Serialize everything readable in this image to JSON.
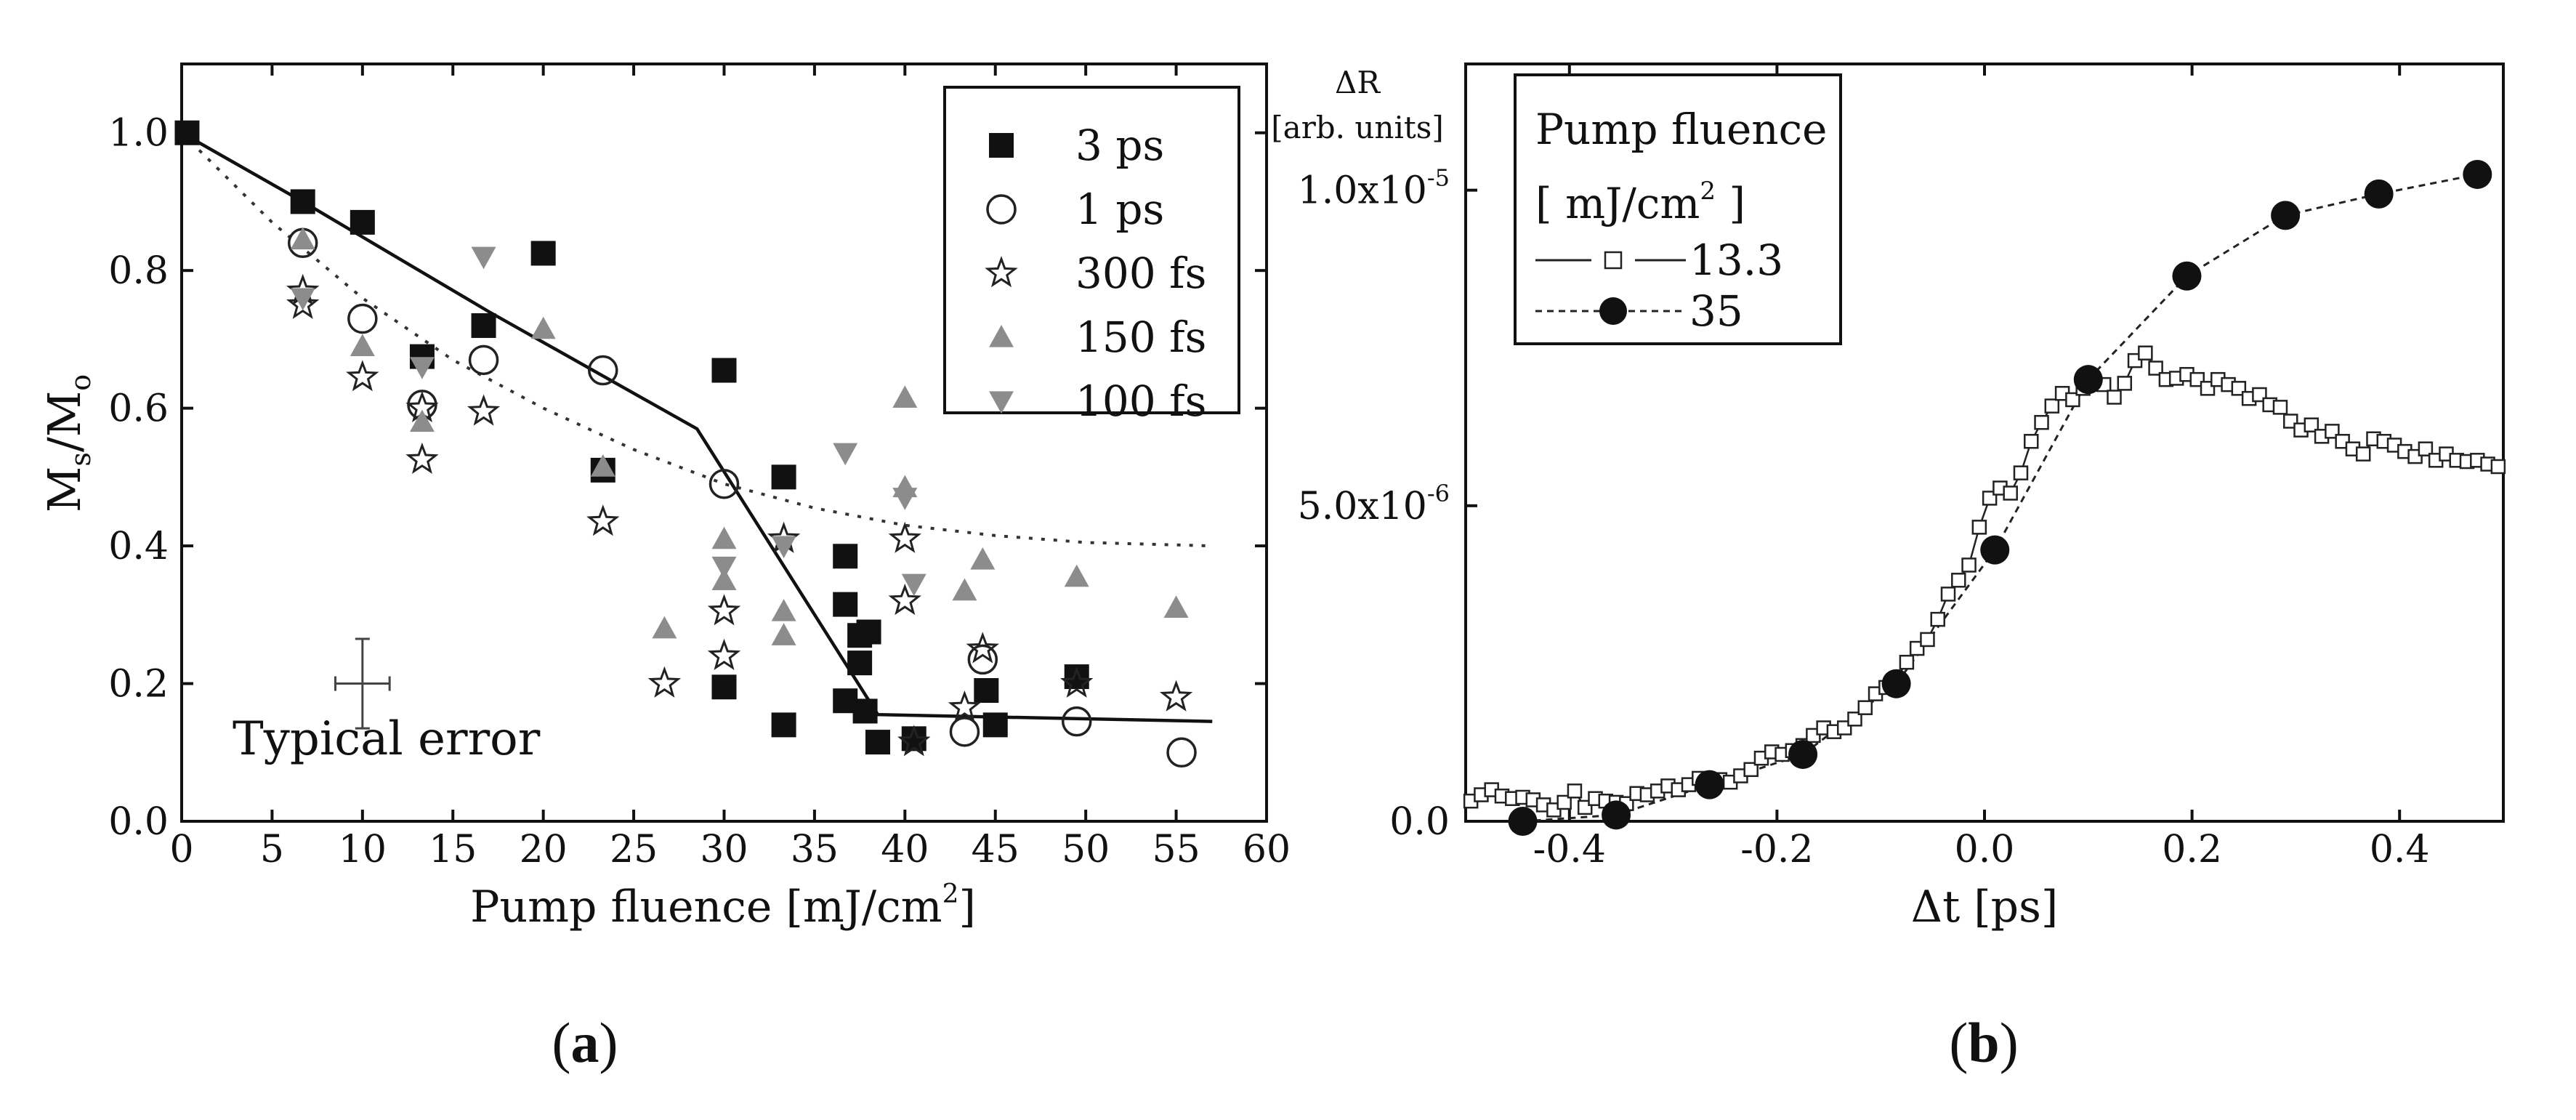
{
  "figure": {
    "label_a_open": "(",
    "label_a_letter": "a",
    "label_a_close": ")",
    "label_b_open": "(",
    "label_b_letter": "b",
    "label_b_close": ")"
  },
  "chart_data": [
    {
      "type": "scatter",
      "panel": "a",
      "xlabel": "Pump fluence [mJ/cm",
      "xlabel_sup": "2",
      "xlabel_end": "]",
      "ylabel_main": "M",
      "ylabel_sub_s": "s",
      "ylabel_slash": "/M",
      "ylabel_sub_o": "o",
      "xlim": [
        0,
        60
      ],
      "ylim": [
        0,
        1.1
      ],
      "xticks": [
        "0",
        "5",
        "10",
        "15",
        "20",
        "25",
        "30",
        "35",
        "40",
        "45",
        "50",
        "55",
        "60"
      ],
      "yticks": [
        "0.0",
        "0.2",
        "0.4",
        "0.6",
        "0.8",
        "1.0"
      ],
      "annotation": "Typical error",
      "error_bar": {
        "x": 10,
        "y": 0.2,
        "dx": 1.5,
        "dy": 0.065
      },
      "legend": [
        {
          "name": "3 ps",
          "marker": "square-filled"
        },
        {
          "name": "1 ps",
          "marker": "circle-open"
        },
        {
          "name": "300 fs",
          "marker": "star-open"
        },
        {
          "name": "150 fs",
          "marker": "triangle-up-gray"
        },
        {
          "name": "100 fs",
          "marker": "triangle-down-gray"
        }
      ],
      "series": [
        {
          "name": "3 ps",
          "marker": "square-filled",
          "x": [
            0.3,
            6.7,
            10,
            13.3,
            16.7,
            20,
            23.3,
            30,
            30,
            33.3,
            33.3,
            36.7,
            36.7,
            36.7,
            37.5,
            37.5,
            37.8,
            38,
            38.5,
            40.5,
            44.5,
            45,
            49.5
          ],
          "y": [
            1.0,
            0.9,
            0.87,
            0.675,
            0.72,
            0.825,
            0.51,
            0.655,
            0.195,
            0.5,
            0.14,
            0.385,
            0.315,
            0.175,
            0.27,
            0.23,
            0.16,
            0.275,
            0.115,
            0.12,
            0.19,
            0.14,
            0.21
          ]
        },
        {
          "name": "1 ps",
          "marker": "circle-open",
          "x": [
            6.7,
            10,
            13.3,
            16.7,
            23.3,
            30,
            43.3,
            44.3,
            49.5,
            55.3
          ],
          "y": [
            0.84,
            0.73,
            0.605,
            0.67,
            0.655,
            0.49,
            0.13,
            0.235,
            0.145,
            0.1
          ]
        },
        {
          "name": "300 fs",
          "marker": "star-open",
          "x": [
            6.7,
            6.7,
            10,
            13.3,
            13.3,
            16.7,
            23.3,
            26.7,
            30,
            30,
            33.3,
            40,
            40,
            40.5,
            43.3,
            44.3,
            49.5,
            55
          ],
          "y": [
            0.77,
            0.75,
            0.645,
            0.6,
            0.525,
            0.595,
            0.435,
            0.2,
            0.305,
            0.24,
            0.41,
            0.41,
            0.32,
            0.115,
            0.165,
            0.25,
            0.2,
            0.18
          ]
        },
        {
          "name": "150 fs",
          "marker": "triangle-up-gray",
          "x": [
            6.7,
            10,
            13.3,
            20,
            23.3,
            26.7,
            30,
            30,
            33.3,
            33.3,
            40,
            40,
            43.3,
            44.3,
            49.5,
            55
          ],
          "y": [
            0.845,
            0.69,
            0.58,
            0.715,
            0.515,
            0.28,
            0.41,
            0.35,
            0.305,
            0.27,
            0.615,
            0.485,
            0.335,
            0.38,
            0.355,
            0.31
          ]
        },
        {
          "name": "100 fs",
          "marker": "triangle-down-gray",
          "x": [
            6.7,
            13.3,
            16.7,
            30,
            33.3,
            36.7,
            40,
            40.5
          ],
          "y": [
            0.76,
            0.66,
            0.82,
            0.37,
            0.4,
            0.535,
            0.47,
            0.345
          ]
        }
      ],
      "solid_curve": {
        "x": [
          0,
          6.7,
          17,
          28.5,
          38.5,
          57
        ],
        "y": [
          1.0,
          0.9,
          0.74,
          0.57,
          0.155,
          0.145
        ]
      },
      "dotted_curve": {
        "x": [
          0,
          5,
          10,
          15,
          20,
          25,
          30,
          35,
          40,
          45,
          50,
          57
        ],
        "y": [
          1.0,
          0.87,
          0.76,
          0.67,
          0.6,
          0.54,
          0.49,
          0.455,
          0.43,
          0.415,
          0.405,
          0.4
        ]
      }
    },
    {
      "type": "line",
      "panel": "b",
      "xlabel": "Δt [ps]",
      "ylabel_top": "ΔR",
      "ylabel_units": "[arb. units]",
      "xlim": [
        -0.5,
        0.5
      ],
      "ylim": [
        0,
        1.2e-05
      ],
      "xticks": [
        "-0.4",
        "-0.2",
        "0.0",
        "0.2",
        "0.4"
      ],
      "yticks": [
        {
          "value": 0,
          "mantissa": "0.0",
          "exp": ""
        },
        {
          "value": 5e-06,
          "mantissa": "5.0x10",
          "exp": "-6"
        },
        {
          "value": 1e-05,
          "mantissa": "1.0x10",
          "exp": "-5"
        }
      ],
      "legend_title": "Pump fluence",
      "legend_units": "[ mJ/cm",
      "legend_units_sup": "2",
      "legend_units_end": " ]",
      "series": [
        {
          "name": "13.3",
          "marker": "square-open",
          "line": "solid",
          "x": [
            -0.495,
            -0.485,
            -0.475,
            -0.465,
            -0.455,
            -0.445,
            -0.435,
            -0.425,
            -0.415,
            -0.405,
            -0.395,
            -0.385,
            -0.375,
            -0.365,
            -0.355,
            -0.345,
            -0.335,
            -0.325,
            -0.315,
            -0.305,
            -0.295,
            -0.285,
            -0.275,
            -0.265,
            -0.255,
            -0.245,
            -0.235,
            -0.225,
            -0.215,
            -0.205,
            -0.195,
            -0.185,
            -0.175,
            -0.165,
            -0.155,
            -0.145,
            -0.135,
            -0.125,
            -0.115,
            -0.105,
            -0.095,
            -0.085,
            -0.075,
            -0.065,
            -0.055,
            -0.045,
            -0.035,
            -0.025,
            -0.015,
            -0.005,
            0.005,
            0.015,
            0.025,
            0.035,
            0.045,
            0.055,
            0.065,
            0.075,
            0.085,
            0.095,
            0.105,
            0.115,
            0.125,
            0.135,
            0.145,
            0.155,
            0.165,
            0.175,
            0.185,
            0.195,
            0.205,
            0.215,
            0.225,
            0.235,
            0.245,
            0.255,
            0.265,
            0.275,
            0.285,
            0.295,
            0.305,
            0.315,
            0.325,
            0.335,
            0.345,
            0.355,
            0.365,
            0.375,
            0.385,
            0.395,
            0.405,
            0.415,
            0.425,
            0.435,
            0.445,
            0.455,
            0.465,
            0.475,
            0.485,
            0.495
          ],
          "y": [
            3.2e-07,
            4.2e-07,
            5e-07,
            4e-07,
            3.6e-07,
            3.8e-07,
            3.4e-07,
            2.6e-07,
            1.8e-07,
            3e-07,
            4.8e-07,
            2.2e-07,
            3.6e-07,
            3.2e-07,
            3e-07,
            2.8e-07,
            4.4e-07,
            4.2e-07,
            4.8e-07,
            5.6e-07,
            5e-07,
            5.8e-07,
            6.8e-07,
            6.4e-07,
            6.6e-07,
            6.2e-07,
            7.2e-07,
            8.2e-07,
            1e-06,
            1.1e-06,
            1.06e-06,
            1.12e-06,
            1.2e-06,
            1.36e-06,
            1.48e-06,
            1.42e-06,
            1.48e-06,
            1.62e-06,
            1.8e-06,
            2.02e-06,
            2.12e-06,
            2.26e-06,
            2.52e-06,
            2.74e-06,
            2.88e-06,
            3.2e-06,
            3.6e-06,
            3.82e-06,
            4.06e-06,
            4.66e-06,
            5.12e-06,
            5.28e-06,
            5.2e-06,
            5.52e-06,
            6.02e-06,
            6.32e-06,
            6.58e-06,
            6.78e-06,
            6.68e-06,
            6.86e-06,
            6.96e-06,
            6.92e-06,
            6.72e-06,
            6.94e-06,
            7.3e-06,
            7.42e-06,
            7.18e-06,
            7e-06,
            7.02e-06,
            7.08e-06,
            7e-06,
            6.86e-06,
            7e-06,
            6.92e-06,
            6.86e-06,
            6.7e-06,
            6.76e-06,
            6.6e-06,
            6.56e-06,
            6.34e-06,
            6.2e-06,
            6.28e-06,
            6.1e-06,
            6.18e-06,
            6.02e-06,
            5.9e-06,
            5.82e-06,
            6.06e-06,
            6.02e-06,
            5.96e-06,
            5.86e-06,
            5.78e-06,
            5.9e-06,
            5.72e-06,
            5.82e-06,
            5.72e-06,
            5.7e-06,
            5.72e-06,
            5.66e-06,
            5.62e-06
          ]
        },
        {
          "name": "35",
          "marker": "circle-filled",
          "line": "dashed",
          "x": [
            -0.445,
            -0.355,
            -0.265,
            -0.175,
            -0.085,
            0.01,
            0.1,
            0.195,
            0.29,
            0.38,
            0.475
          ],
          "y": [
            0.0,
            1e-07,
            5.8e-07,
            1.06e-06,
            2.18e-06,
            4.3e-06,
            7e-06,
            8.64e-06,
            9.6e-06,
            9.94e-06,
            1.025e-05
          ]
        }
      ]
    }
  ]
}
